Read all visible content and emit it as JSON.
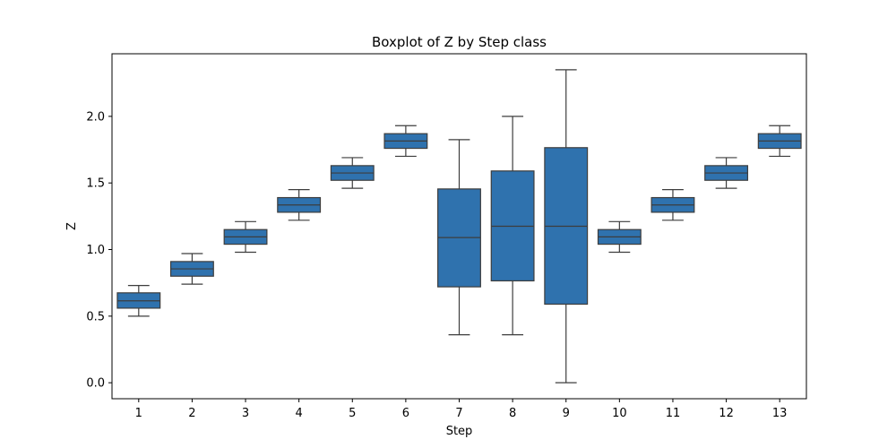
{
  "chart_data": {
    "type": "boxplot",
    "title": "Boxplot of Z by Step class",
    "xlabel": "Step",
    "ylabel": "Z",
    "ylim": [
      -0.12,
      2.47
    ],
    "yticks": [
      "0.0",
      "0.5",
      "1.0",
      "1.5",
      "2.0"
    ],
    "grid": false,
    "legend": "none",
    "colors": {
      "box": "#2f72ae",
      "line": "#3d3d3d"
    },
    "categories": [
      "1",
      "2",
      "3",
      "4",
      "5",
      "6",
      "7",
      "8",
      "9",
      "10",
      "11",
      "12",
      "13"
    ],
    "boxes": [
      {
        "whisker_low": 0.5,
        "q1": 0.56,
        "median": 0.615,
        "q3": 0.675,
        "whisker_high": 0.73
      },
      {
        "whisker_low": 0.74,
        "q1": 0.8,
        "median": 0.855,
        "q3": 0.91,
        "whisker_high": 0.97
      },
      {
        "whisker_low": 0.98,
        "q1": 1.04,
        "median": 1.095,
        "q3": 1.15,
        "whisker_high": 1.21
      },
      {
        "whisker_low": 1.22,
        "q1": 1.28,
        "median": 1.335,
        "q3": 1.39,
        "whisker_high": 1.45
      },
      {
        "whisker_low": 1.46,
        "q1": 1.52,
        "median": 1.575,
        "q3": 1.63,
        "whisker_high": 1.69
      },
      {
        "whisker_low": 1.7,
        "q1": 1.76,
        "median": 1.815,
        "q3": 1.87,
        "whisker_high": 1.93
      },
      {
        "whisker_low": 0.36,
        "q1": 0.72,
        "median": 1.09,
        "q3": 1.455,
        "whisker_high": 1.825
      },
      {
        "whisker_low": 0.36,
        "q1": 0.765,
        "median": 1.175,
        "q3": 1.59,
        "whisker_high": 2.0
      },
      {
        "whisker_low": 0.0,
        "q1": 0.59,
        "median": 1.175,
        "q3": 1.765,
        "whisker_high": 2.35
      },
      {
        "whisker_low": 0.98,
        "q1": 1.04,
        "median": 1.095,
        "q3": 1.15,
        "whisker_high": 1.21
      },
      {
        "whisker_low": 1.22,
        "q1": 1.28,
        "median": 1.335,
        "q3": 1.39,
        "whisker_high": 1.45
      },
      {
        "whisker_low": 1.46,
        "q1": 1.52,
        "median": 1.575,
        "q3": 1.63,
        "whisker_high": 1.69
      },
      {
        "whisker_low": 1.7,
        "q1": 1.76,
        "median": 1.815,
        "q3": 1.87,
        "whisker_high": 1.93
      }
    ]
  }
}
